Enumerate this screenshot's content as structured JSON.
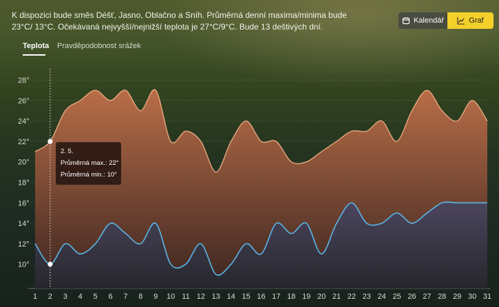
{
  "summary": "K dispozici bude směs Déšť, Jasno, Oblačno a Sníh. Průměrná denní maxima/minima bude 23°C/ 13°C. Očekávaná nejvyšší/nejnižší teplota je 27°C/9°C. Bude 13 deštivých dní.",
  "tabs": {
    "temperature": "Teplota",
    "precipitation": "Pravděpodobnost srážek"
  },
  "view_toggle": {
    "calendar_label": "Kalendář",
    "calendar_icon": "calendar-icon",
    "graph_label": "Graf",
    "graph_icon": "line-chart-icon",
    "selected": "graph"
  },
  "tooltip": {
    "date": "2. 5.",
    "max_label": "Průměrná max.:",
    "max_value": "22°",
    "min_label": "Průměrná min.:",
    "min_value": "10°"
  },
  "colors": {
    "max_line": "#e7a77f",
    "min_line": "#5ab7e8",
    "accent": "#f4d02a"
  },
  "chart_data": {
    "type": "area",
    "x": [
      1,
      2,
      3,
      4,
      5,
      6,
      7,
      8,
      9,
      10,
      11,
      12,
      13,
      14,
      15,
      16,
      17,
      18,
      19,
      20,
      21,
      22,
      23,
      24,
      25,
      26,
      27,
      28,
      29,
      30,
      31
    ],
    "y_ticks": [
      "10°",
      "12°",
      "14°",
      "16°",
      "18°",
      "20°",
      "22°",
      "24°",
      "26°",
      "28°"
    ],
    "ylim": [
      8,
      29
    ],
    "series": [
      {
        "key": "max",
        "values": [
          21,
          22,
          25,
          26,
          27,
          26,
          27,
          25,
          27,
          22,
          23,
          22,
          19,
          22,
          24,
          22,
          22,
          20,
          20,
          21,
          22,
          23,
          23,
          24,
          22,
          25,
          27,
          25,
          24,
          26,
          24
        ]
      },
      {
        "key": "min",
        "values": [
          12,
          10,
          12,
          11,
          12,
          14,
          13,
          12,
          14,
          10,
          10,
          12,
          9,
          10,
          12,
          11,
          14,
          13,
          14,
          11,
          14,
          16,
          14,
          14,
          15,
          14,
          15,
          16,
          16,
          16,
          16
        ]
      }
    ],
    "highlight_index": 1
  }
}
